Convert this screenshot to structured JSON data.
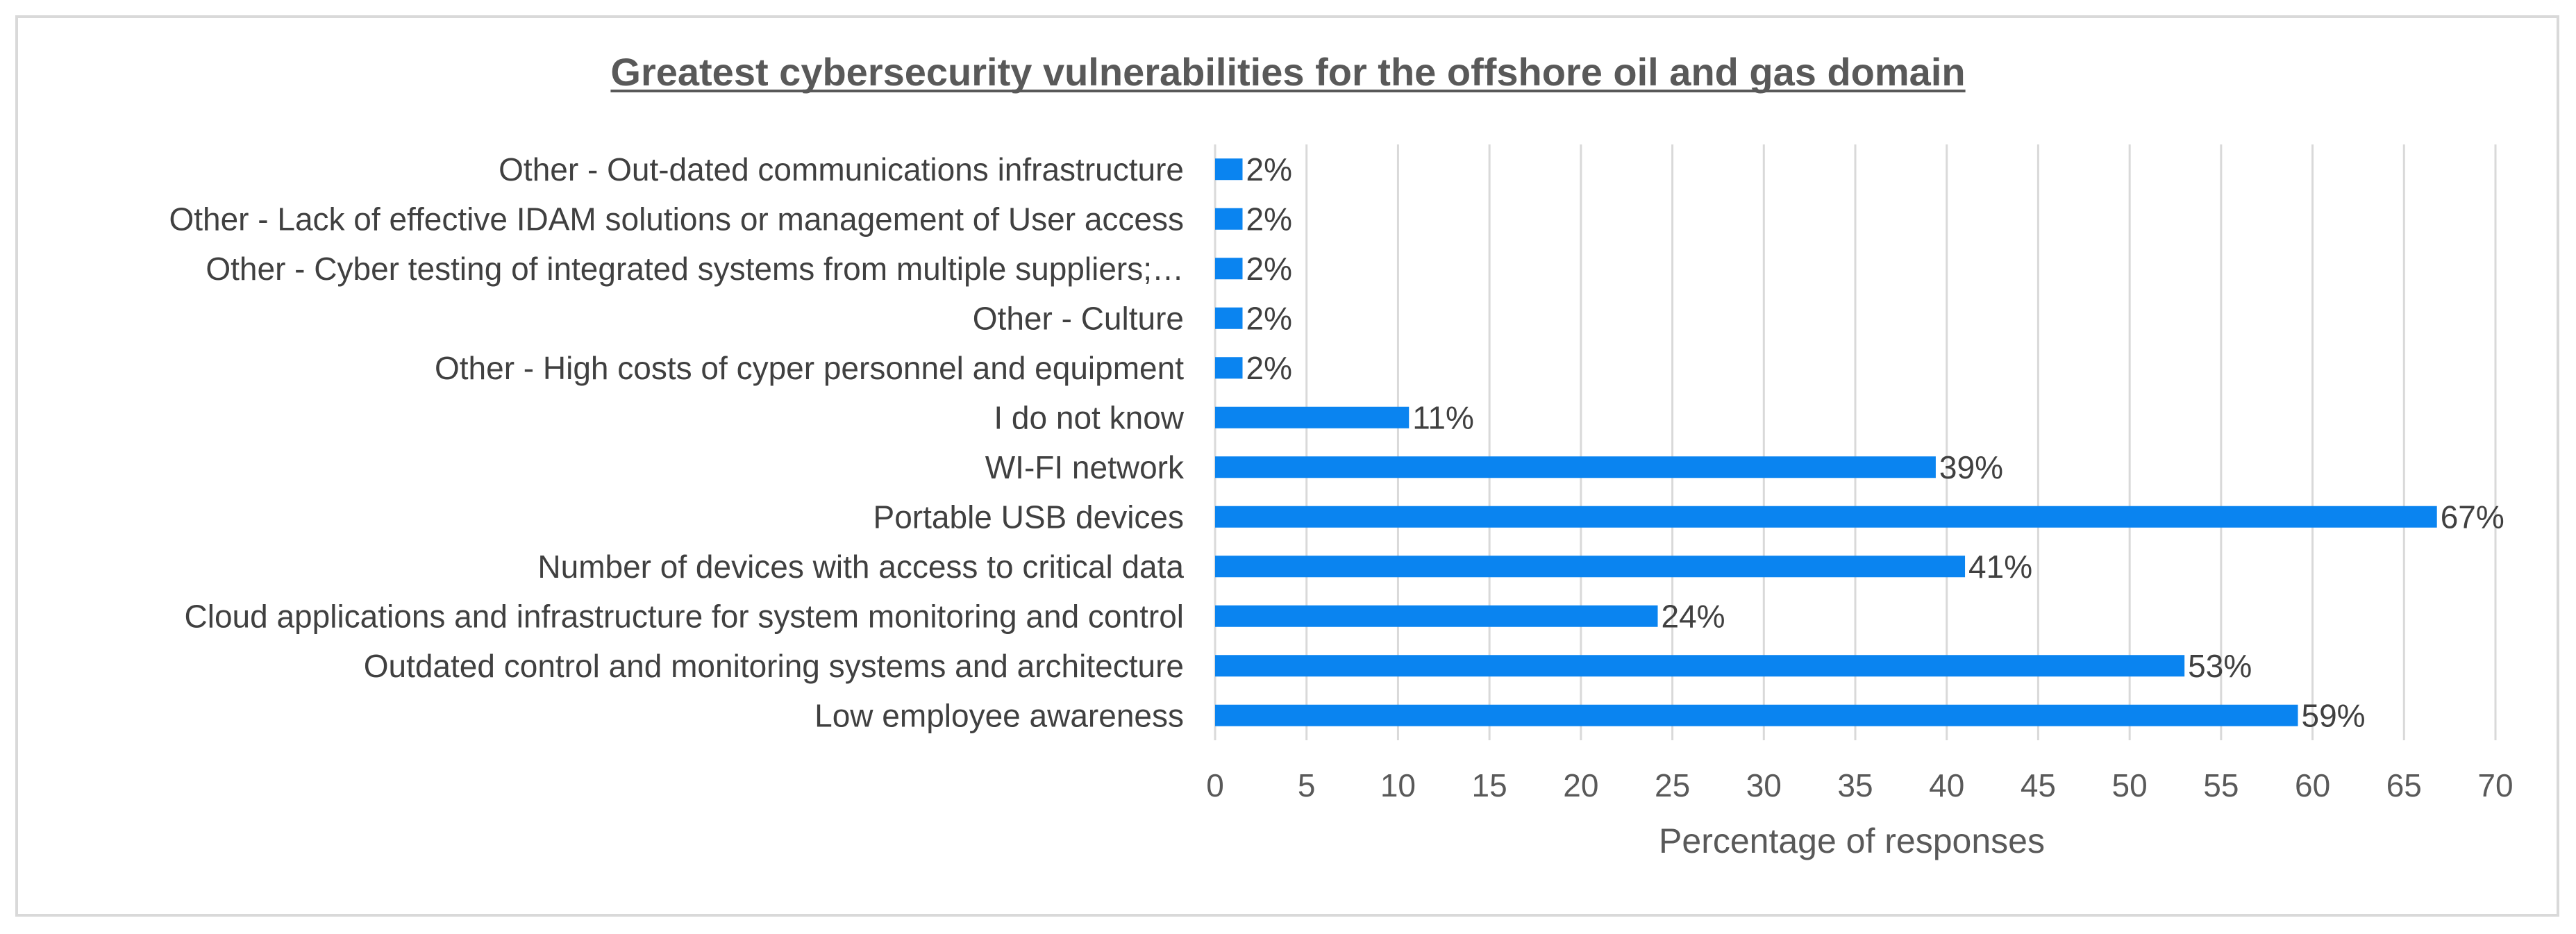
{
  "chart_data": {
    "type": "bar",
    "orientation": "horizontal",
    "title": "Greatest cybersecurity vulnerabilities for the offshore oil and gas domain",
    "xlabel": "Percentage of responses",
    "ylabel": "",
    "xlim": [
      0,
      70
    ],
    "xticks": [
      0,
      5,
      10,
      15,
      20,
      25,
      30,
      35,
      40,
      45,
      50,
      55,
      60,
      65,
      70
    ],
    "grid": "vertical",
    "bar_color": "#0a84f0",
    "categories": [
      "Other - Out-dated communications infrastructure",
      "Other - Lack of effective IDAM solutions or management of User access",
      "Other - Cyber testing of integrated systems from multiple suppliers;…",
      "Other - Culture",
      "Other - High costs of cyper personnel and equipment",
      "I do not know",
      "WI-FI network",
      "Portable USB devices",
      "Number of devices with access to critical data",
      "Cloud applications and infrastructure for system monitoring and control",
      "Outdated control and monitoring systems and architecture",
      "Low employee awareness"
    ],
    "values": [
      1.5,
      1.5,
      1.5,
      1.5,
      1.5,
      10.6,
      39.4,
      66.8,
      41.0,
      24.2,
      53.0,
      59.2
    ],
    "data_labels": [
      "2%",
      "2%",
      "2%",
      "2%",
      "2%",
      "11%",
      "39%",
      "67%",
      "41%",
      "24%",
      "53%",
      "59%"
    ]
  }
}
